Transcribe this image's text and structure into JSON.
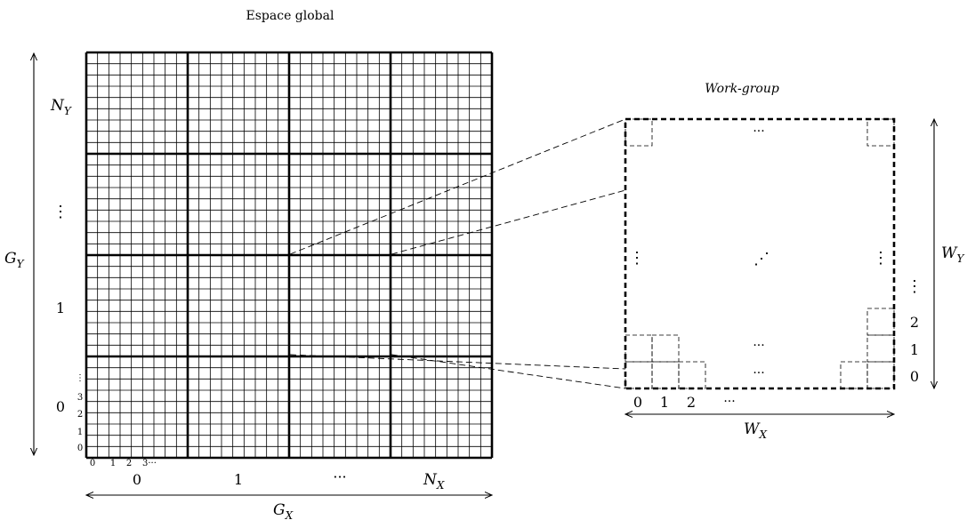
{
  "global_space": {
    "title": "Espace global",
    "axis_y_label": "G",
    "axis_y_sub": "Y",
    "axis_x_label": "G",
    "axis_x_sub": "X",
    "block_rows_per_block": 9,
    "block_cols_per_block": 9,
    "block_row_labels": [
      {
        "id": "0",
        "text": "0"
      },
      {
        "id": "1",
        "text": "1"
      },
      {
        "id": "dots",
        "text": "⋮"
      },
      {
        "id": "ny",
        "text": "N",
        "sub": "Y"
      }
    ],
    "block_col_labels": [
      {
        "id": "0",
        "text": "0"
      },
      {
        "id": "1",
        "text": "1"
      },
      {
        "id": "dots",
        "text": "···"
      },
      {
        "id": "nx",
        "text": "N",
        "sub": "X"
      }
    ],
    "cell_row_labels": [
      "0",
      "1",
      "2",
      "3",
      "⋮"
    ],
    "cell_col_labels": [
      "0",
      "1",
      "2",
      "3···"
    ]
  },
  "work_group": {
    "title": "Work-group",
    "axis_y_label": "W",
    "axis_y_sub": "Y",
    "axis_x_label": "W",
    "axis_x_sub": "X",
    "col_labels": [
      "0",
      "1",
      "2",
      "···"
    ],
    "row_labels": [
      "0",
      "1",
      "2",
      "⋮"
    ],
    "dots_h": "···",
    "dots_v": "⋮",
    "dots_d": "⋰"
  }
}
